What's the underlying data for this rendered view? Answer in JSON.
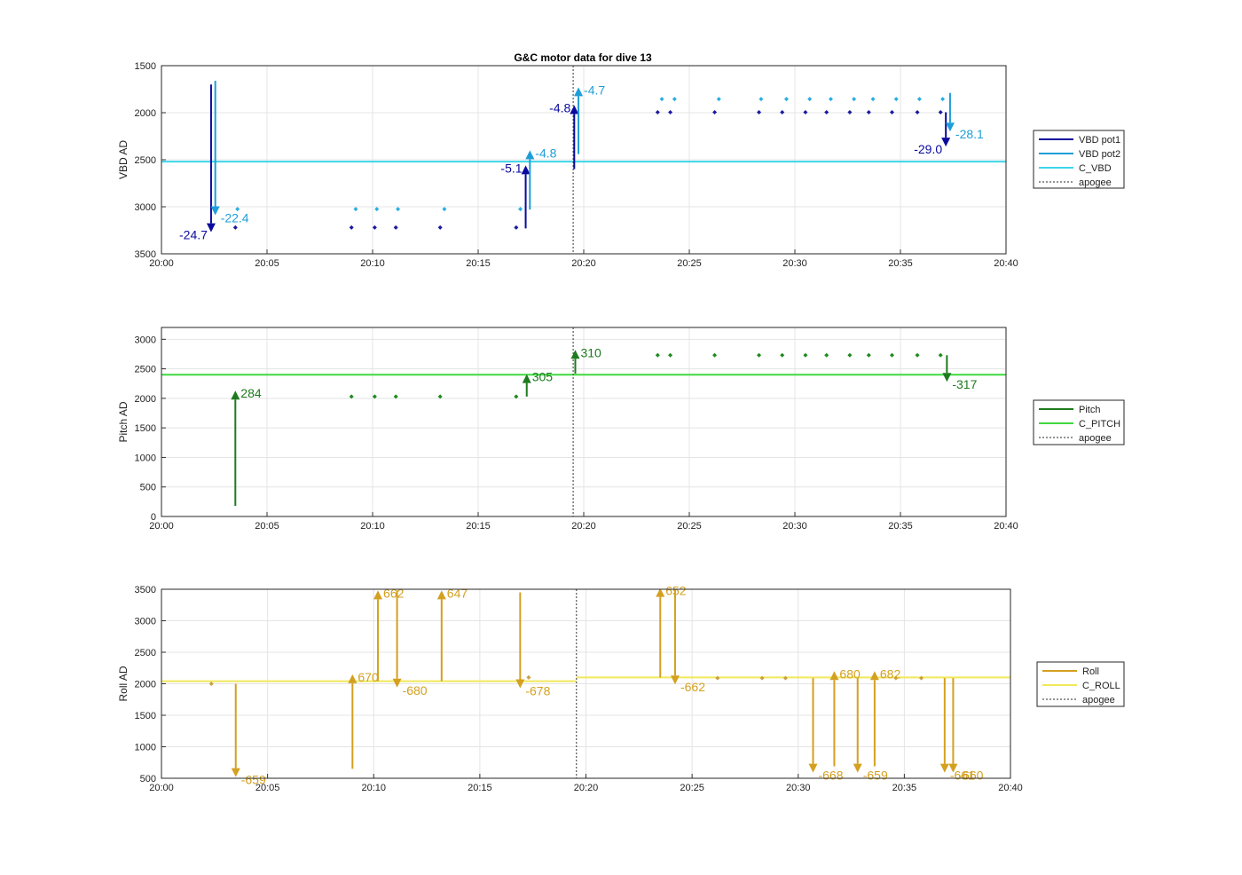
{
  "title": "G&C motor data for dive 13",
  "chart_data": [
    {
      "type": "line",
      "ylabel": "VBD AD",
      "y_reversed": true,
      "ylim": [
        1500,
        3500
      ],
      "yticks": [
        1500,
        2000,
        2500,
        3000,
        3500
      ],
      "xlim_min": [
        0,
        40
      ],
      "xticks": [
        0,
        5,
        10,
        15,
        20,
        25,
        30,
        35,
        40
      ],
      "xtick_labels": [
        "20:00",
        "20:05",
        "20:10",
        "20:15",
        "20:20",
        "20:25",
        "20:30",
        "20:35",
        "20:40"
      ],
      "grid": true,
      "legend_position": "right",
      "legend": [
        {
          "label": "VBD pot1",
          "color": "#0a0a9e",
          "style": "solid"
        },
        {
          "label": "VBD pot2",
          "color": "#1e9ed8",
          "style": "solid"
        },
        {
          "label": "C_VBD",
          "color": "#3fd6ea",
          "style": "solid"
        },
        {
          "label": "apogee",
          "color": "#555555",
          "style": "dashed"
        }
      ],
      "hlines": [
        {
          "y": 2520,
          "color": "#3fd6ea"
        }
      ],
      "apogee_x": 19.5,
      "series": [
        {
          "name": "VBD pot1",
          "color": "#0a0a9e",
          "marker_color": "#1a1aa0",
          "x": [
            3.5,
            9,
            10.1,
            11.1,
            13.2,
            16.8,
            23.5,
            24.1,
            26.2,
            28.3,
            29.4,
            30.5,
            31.5,
            32.6,
            33.5,
            34.6,
            35.8,
            36.9
          ],
          "y": [
            3220,
            3220,
            3220,
            3220,
            3220,
            3220,
            1995,
            1995,
            1995,
            1995,
            1995,
            1995,
            1995,
            1995,
            1995,
            1995,
            1995,
            1995
          ]
        },
        {
          "name": "VBD pot2",
          "color": "#1e9ed8",
          "marker_color": "#2aaee0",
          "x": [
            3.6,
            9.2,
            10.2,
            11.2,
            13.4,
            17.0,
            23.7,
            24.3,
            26.4,
            28.4,
            29.6,
            30.7,
            31.7,
            32.8,
            33.7,
            34.8,
            35.9,
            37.0
          ],
          "y": [
            3025,
            3025,
            3025,
            3025,
            3025,
            3025,
            1855,
            1855,
            1855,
            1855,
            1855,
            1855,
            1855,
            1855,
            1855,
            1855,
            1855,
            1855
          ]
        }
      ],
      "arrows": [
        {
          "x": 2.35,
          "y0": 1700,
          "y1": 3270,
          "color": "#0a0a9e",
          "label": "-24.7",
          "label_side": "left"
        },
        {
          "x": 2.55,
          "y0": 1660,
          "y1": 3090,
          "color": "#1e9ed8",
          "label": "-22.4",
          "label_side": "right"
        },
        {
          "x": 17.25,
          "y0": 3230,
          "y1": 2560,
          "color": "#0a0a9e",
          "label": "-5.1",
          "label_side": "left"
        },
        {
          "x": 17.45,
          "y0": 3030,
          "y1": 2400,
          "color": "#1e9ed8",
          "label": "-4.8",
          "label_side": "right"
        },
        {
          "x": 19.55,
          "y0": 2600,
          "y1": 1920,
          "color": "#0a0a9e",
          "label": "-4.8",
          "label_side": "left"
        },
        {
          "x": 19.75,
          "y0": 2440,
          "y1": 1730,
          "color": "#1e9ed8",
          "label": "-4.7",
          "label_side": "right"
        },
        {
          "x": 37.15,
          "y0": 1995,
          "y1": 2360,
          "color": "#0a0a9e",
          "label": "-29.0",
          "label_side": "left"
        },
        {
          "x": 37.35,
          "y0": 1790,
          "y1": 2200,
          "color": "#1e9ed8",
          "label": "-28.1",
          "label_side": "right"
        }
      ]
    },
    {
      "type": "line",
      "ylabel": "Pitch AD",
      "y_reversed": false,
      "ylim": [
        0,
        3200
      ],
      "yticks": [
        0,
        500,
        1000,
        1500,
        2000,
        2500,
        3000
      ],
      "xlim_min": [
        0,
        40
      ],
      "xticks": [
        0,
        5,
        10,
        15,
        20,
        25,
        30,
        35,
        40
      ],
      "xtick_labels": [
        "20:00",
        "20:05",
        "20:10",
        "20:15",
        "20:20",
        "20:25",
        "20:30",
        "20:35",
        "20:40"
      ],
      "grid": true,
      "legend_position": "right",
      "legend": [
        {
          "label": "Pitch",
          "color": "#1e7a1e",
          "style": "solid"
        },
        {
          "label": "C_PITCH",
          "color": "#3ed93e",
          "style": "solid"
        },
        {
          "label": "apogee",
          "color": "#555555",
          "style": "dashed"
        }
      ],
      "hlines": [
        {
          "y": 2400,
          "color": "#3ed93e"
        }
      ],
      "apogee_x": 19.5,
      "series": [
        {
          "name": "Pitch",
          "color": "#1e7a1e",
          "marker_color": "#1e8a1e",
          "x": [
            9,
            10.1,
            11.1,
            13.2,
            16.8,
            23.5,
            24.1,
            26.2,
            28.3,
            29.4,
            30.5,
            31.5,
            32.6,
            33.5,
            34.6,
            35.8,
            36.9
          ],
          "y": [
            2030,
            2030,
            2030,
            2030,
            2030,
            2730,
            2730,
            2730,
            2730,
            2730,
            2730,
            2730,
            2730,
            2730,
            2730,
            2730,
            2730
          ]
        }
      ],
      "arrows": [
        {
          "x": 3.5,
          "y0": 180,
          "y1": 2130,
          "color": "#1e7a1e",
          "label": "284",
          "label_side": "right"
        },
        {
          "x": 17.3,
          "y0": 2030,
          "y1": 2410,
          "color": "#1e7a1e",
          "label": "305",
          "label_side": "right"
        },
        {
          "x": 19.6,
          "y0": 2420,
          "y1": 2820,
          "color": "#1e7a1e",
          "label": "310",
          "label_side": "right"
        },
        {
          "x": 37.2,
          "y0": 2730,
          "y1": 2280,
          "color": "#1e7a1e",
          "label": "-317",
          "label_side": "right"
        }
      ]
    },
    {
      "type": "line",
      "ylabel": "Roll AD",
      "y_reversed": false,
      "ylim": [
        500,
        3500
      ],
      "yticks": [
        500,
        1000,
        1500,
        2000,
        2500,
        3000,
        3500
      ],
      "xlim_min": [
        0,
        40
      ],
      "xticks": [
        0,
        5,
        10,
        15,
        20,
        25,
        30,
        35,
        40
      ],
      "xtick_labels": [
        "20:00",
        "20:05",
        "20:10",
        "20:15",
        "20:20",
        "20:25",
        "20:30",
        "20:35",
        "20:40"
      ],
      "grid": true,
      "legend_position": "right",
      "legend": [
        {
          "label": "Roll",
          "color": "#d4a020",
          "style": "solid"
        },
        {
          "label": "C_ROLL",
          "color": "#f0e85a",
          "style": "solid"
        },
        {
          "label": "apogee",
          "color": "#555555",
          "style": "dashed"
        }
      ],
      "hlines_segments": [
        {
          "x0": 0,
          "x1": 19.55,
          "y": 2040,
          "color": "#f0e85a"
        },
        {
          "x0": 19.55,
          "x1": 40,
          "y": 2100,
          "color": "#f0e85a"
        }
      ],
      "apogee_x": 19.55,
      "series": [
        {
          "name": "Roll",
          "color": "#d4a020",
          "marker_color": "#c8a040",
          "x": [
            2.35,
            17.3,
            26.2,
            28.3,
            29.4,
            34.6,
            35.8
          ],
          "y": [
            2000,
            2100,
            2090,
            2090,
            2090,
            2090,
            2090
          ]
        }
      ],
      "arrows": [
        {
          "x": 3.5,
          "y0": 2000,
          "y1": 520,
          "color": "#d4a020",
          "label": "-659",
          "label_side": "right",
          "label_dy": 0
        },
        {
          "x": 9.0,
          "y0": 650,
          "y1": 2150,
          "color": "#d4a020",
          "label": "670",
          "label_side": "right"
        },
        {
          "x": 10.2,
          "y0": 2040,
          "y1": 3480,
          "color": "#d4a020",
          "label": "662",
          "label_side": "right"
        },
        {
          "x": 11.1,
          "y0": 3480,
          "y1": 1940,
          "color": "#d4a020",
          "label": "-680",
          "label_side": "right"
        },
        {
          "x": 13.2,
          "y0": 2040,
          "y1": 3480,
          "color": "#d4a020",
          "label": "647",
          "label_side": "right"
        },
        {
          "x": 16.9,
          "y0": 3450,
          "y1": 1930,
          "color": "#d4a020",
          "label": "-678",
          "label_side": "right"
        },
        {
          "x": 23.5,
          "y0": 2100,
          "y1": 3520,
          "color": "#d4a020",
          "label": "652",
          "label_side": "right"
        },
        {
          "x": 24.2,
          "y0": 3520,
          "y1": 1990,
          "color": "#d4a020",
          "label": "-662",
          "label_side": "right"
        },
        {
          "x": 30.7,
          "y0": 2090,
          "y1": 590,
          "color": "#d4a020",
          "label": "-668",
          "label_side": "right"
        },
        {
          "x": 31.7,
          "y0": 690,
          "y1": 2200,
          "color": "#d4a020",
          "label": "680",
          "label_side": "right"
        },
        {
          "x": 32.8,
          "y0": 2090,
          "y1": 590,
          "color": "#d4a020",
          "label": "-659",
          "label_side": "right"
        },
        {
          "x": 33.6,
          "y0": 690,
          "y1": 2200,
          "color": "#d4a020",
          "label": "682",
          "label_side": "right"
        },
        {
          "x": 36.9,
          "y0": 2090,
          "y1": 590,
          "color": "#d4a020",
          "label": "-661",
          "label_side": "right"
        },
        {
          "x": 37.3,
          "y0": 2090,
          "y1": 590,
          "color": "#d4a020",
          "label": "-660",
          "label_side": "right"
        }
      ]
    }
  ]
}
